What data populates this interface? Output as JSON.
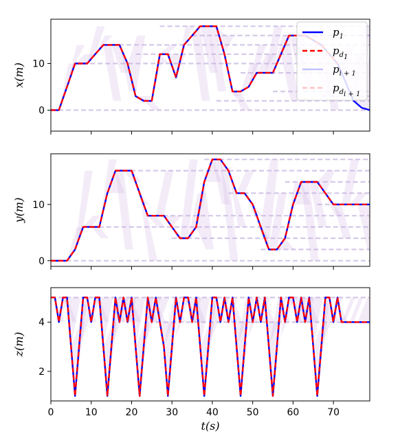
{
  "chart_data": [
    {
      "type": "line",
      "panel": "x",
      "ylabel": "x(m)",
      "xlabel": "",
      "xlim": [
        0,
        79
      ],
      "ylim": [
        -4.5,
        19.5
      ],
      "yticks": [
        0,
        10
      ],
      "xtick_labels_shown": false,
      "grid": false,
      "legend": {
        "placement": "top-right",
        "entries": [
          {
            "label": "p",
            "sub": "1",
            "style": "solid",
            "color": "#0000ff"
          },
          {
            "label": "p",
            "sub": "d",
            "subsub": "1",
            "style": "dashed",
            "color": "#ff0000"
          },
          {
            "label": "p",
            "sub": "i + 1",
            "style": "solid-faded",
            "color": "#9999ff"
          },
          {
            "label": "p",
            "sub": "d",
            "subsub": "i + 1",
            "style": "dashed-faded",
            "color": "#ff9999"
          }
        ]
      },
      "follower_levels": [
        0,
        10,
        14,
        12,
        18,
        16,
        2,
        8,
        4,
        16,
        3
      ],
      "series": [
        {
          "name": "p1",
          "color": "#0000ff",
          "style": "solid",
          "x": [
            0,
            2,
            4,
            6,
            9,
            11,
            13,
            15,
            17,
            19,
            21,
            23,
            25,
            27,
            29,
            31,
            33,
            35,
            37,
            39,
            41,
            43,
            45,
            47,
            49,
            51,
            53,
            55,
            57,
            59,
            61,
            63,
            65,
            67,
            69,
            71,
            73,
            75,
            77,
            79
          ],
          "y": [
            0,
            0,
            5,
            10,
            10,
            12,
            14,
            14,
            14,
            10,
            3,
            2,
            2,
            12,
            12,
            7,
            14,
            16,
            18,
            18,
            18,
            12,
            4,
            4,
            5,
            8,
            8,
            8,
            12,
            16,
            16,
            16,
            15,
            14,
            12,
            10,
            6,
            2,
            0.5,
            0
          ]
        },
        {
          "name": "pd1",
          "color": "#ff0000",
          "style": "dashed",
          "x": [
            0,
            2,
            4,
            6,
            9,
            11,
            13,
            15,
            17,
            19,
            21,
            23,
            25,
            27,
            29,
            31,
            33,
            35,
            37,
            39,
            41,
            43,
            45,
            47,
            49,
            51,
            53,
            55,
            57,
            59,
            61,
            63,
            65,
            67,
            69,
            71
          ],
          "y": [
            0,
            0,
            5,
            10,
            10,
            12,
            14,
            14,
            14,
            10,
            3,
            2,
            2,
            12,
            12,
            7,
            14,
            16,
            18,
            18,
            18,
            12,
            4,
            4,
            5,
            8,
            8,
            8,
            12,
            16,
            16,
            16,
            15,
            14,
            12,
            10
          ]
        }
      ]
    },
    {
      "type": "line",
      "panel": "y",
      "ylabel": "y(m)",
      "xlabel": "",
      "xlim": [
        0,
        79
      ],
      "ylim": [
        -1,
        19
      ],
      "yticks": [
        0,
        10
      ],
      "xtick_labels_shown": false,
      "grid": false,
      "follower_levels": [
        0,
        6,
        16,
        8,
        4,
        18,
        12,
        2,
        14,
        10
      ],
      "series": [
        {
          "name": "p1",
          "color": "#0000ff",
          "style": "solid",
          "x": [
            0,
            4,
            6,
            8,
            10,
            12,
            14,
            16,
            18,
            20,
            22,
            24,
            26,
            28,
            30,
            32,
            34,
            36,
            38,
            40,
            42,
            44,
            46,
            48,
            50,
            52,
            54,
            56,
            58,
            60,
            62,
            64,
            66,
            68,
            70,
            72,
            74,
            76,
            79
          ],
          "y": [
            0,
            0,
            2,
            6,
            6,
            6,
            12,
            16,
            16,
            16,
            12,
            8,
            8,
            8,
            6,
            4,
            4,
            6,
            14,
            18,
            18,
            16,
            12,
            12,
            10,
            6,
            2,
            2,
            4,
            10,
            14,
            14,
            14,
            12,
            10,
            10,
            10,
            10,
            10
          ]
        },
        {
          "name": "pd1",
          "color": "#ff0000",
          "style": "dashed",
          "x": [
            0,
            4,
            6,
            8,
            10,
            12,
            14,
            16,
            18,
            20,
            22,
            24,
            26,
            28,
            30,
            32,
            34,
            36,
            38,
            40,
            42,
            44,
            46,
            48,
            50,
            52,
            54,
            56,
            58,
            60,
            62,
            64,
            66,
            68,
            70,
            72,
            74,
            76,
            79
          ],
          "y": [
            0,
            0,
            2,
            6,
            6,
            6,
            12,
            16,
            16,
            16,
            12,
            8,
            8,
            8,
            6,
            4,
            4,
            6,
            14,
            18,
            18,
            16,
            12,
            12,
            10,
            6,
            2,
            2,
            4,
            10,
            14,
            14,
            14,
            12,
            10,
            10,
            10,
            10,
            10
          ]
        }
      ]
    },
    {
      "type": "line",
      "panel": "z",
      "ylabel": "z(m)",
      "xlabel": "t(s)",
      "xlim": [
        0,
        79
      ],
      "ylim": [
        0.8,
        5.4
      ],
      "yticks": [
        2,
        4
      ],
      "xticks": [
        0,
        10,
        20,
        30,
        40,
        50,
        60,
        70
      ],
      "xtick_labels_shown": true,
      "grid": false,
      "follower_levels": [
        5,
        4
      ],
      "series": [
        {
          "name": "p1",
          "color": "#0000ff",
          "style": "solid",
          "x": [
            0,
            1,
            2,
            3,
            4,
            5,
            6,
            7,
            8,
            9,
            10,
            11,
            12,
            13,
            14,
            15,
            16,
            17,
            18,
            19,
            20,
            21,
            22,
            23,
            24,
            25,
            26,
            27,
            28,
            29,
            30,
            31,
            32,
            33,
            34,
            35,
            36,
            37,
            38,
            39,
            40,
            41,
            42,
            43,
            44,
            45,
            46,
            47,
            48,
            49,
            50,
            51,
            52,
            53,
            54,
            55,
            56,
            57,
            58,
            59,
            60,
            61,
            62,
            63,
            64,
            65,
            66,
            67,
            68,
            69,
            70,
            71,
            72,
            73,
            74,
            75,
            76,
            79
          ],
          "y": [
            5,
            5,
            4,
            5,
            5,
            3,
            1,
            3,
            5,
            5,
            4,
            5,
            5,
            3,
            1,
            3,
            5,
            4,
            5,
            4,
            5,
            3,
            1,
            3,
            5,
            4,
            5,
            4,
            3,
            1,
            3,
            5,
            4,
            5,
            5,
            4,
            5,
            3,
            1,
            3,
            5,
            5,
            4,
            5,
            4,
            5,
            3,
            1,
            3,
            5,
            4,
            5,
            4,
            5,
            3,
            1,
            3,
            5,
            4,
            5,
            5,
            4,
            5,
            4,
            5,
            3,
            1,
            3,
            5,
            5,
            4,
            5,
            4,
            4,
            4,
            4,
            4,
            4
          ]
        },
        {
          "name": "pd1",
          "color": "#ff0000",
          "style": "dashed",
          "x": [
            0,
            1,
            2,
            3,
            4,
            5,
            6,
            7,
            8,
            9,
            10,
            11,
            12,
            13,
            14,
            15,
            16,
            17,
            18,
            19,
            20,
            21,
            22,
            23,
            24,
            25,
            26,
            27,
            28,
            29,
            30,
            31,
            32,
            33,
            34,
            35,
            36,
            37,
            38,
            39,
            40,
            41,
            42,
            43,
            44,
            45,
            46,
            47,
            48,
            49,
            50,
            51,
            52,
            53,
            54,
            55,
            56,
            57,
            58,
            59,
            60,
            61,
            62,
            63,
            64,
            65,
            66,
            67,
            68,
            69,
            70,
            71,
            72,
            73,
            74,
            75,
            76,
            79
          ],
          "y": [
            5,
            5,
            4,
            5,
            5,
            3,
            1,
            3,
            5,
            5,
            4,
            5,
            5,
            3,
            1,
            3,
            5,
            4,
            5,
            4,
            5,
            3,
            1,
            3,
            5,
            4,
            5,
            4,
            3,
            1,
            3,
            5,
            4,
            5,
            5,
            4,
            5,
            3,
            1,
            3,
            5,
            5,
            4,
            5,
            4,
            5,
            3,
            1,
            3,
            5,
            4,
            5,
            4,
            5,
            3,
            1,
            3,
            5,
            4,
            5,
            5,
            4,
            5,
            4,
            5,
            3,
            1,
            3,
            5,
            5,
            4,
            5,
            4,
            4,
            4,
            4,
            4,
            4
          ]
        }
      ]
    }
  ]
}
